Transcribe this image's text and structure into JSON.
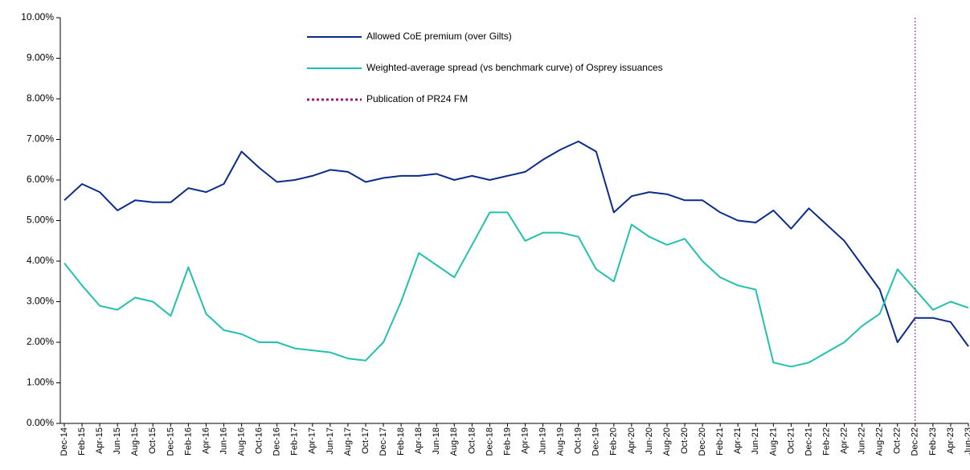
{
  "chart_data": {
    "type": "line",
    "categories": [
      "Dec-14",
      "Feb-15",
      "Apr-15",
      "Jun-15",
      "Aug-15",
      "Oct-15",
      "Dec-15",
      "Feb-16",
      "Apr-16",
      "Jun-16",
      "Aug-16",
      "Oct-16",
      "Dec-16",
      "Feb-17",
      "Apr-17",
      "Jun-17",
      "Aug-17",
      "Oct-17",
      "Dec-17",
      "Feb-18",
      "Apr-18",
      "Jun-18",
      "Aug-18",
      "Oct-18",
      "Dec-18",
      "Feb-19",
      "Apr-19",
      "Jun-19",
      "Aug-19",
      "Oct-19",
      "Dec-19",
      "Feb-20",
      "Apr-20",
      "Jun-20",
      "Aug-20",
      "Oct-20",
      "Dec-20",
      "Feb-21",
      "Apr-21",
      "Jun-21",
      "Aug-21",
      "Oct-21",
      "Dec-21",
      "Feb-22",
      "Apr-22",
      "Jun-22",
      "Aug-22",
      "Oct-22",
      "Dec-22",
      "Feb-23",
      "Apr-23",
      "Jun-23"
    ],
    "series": [
      {
        "name": "Allowed CoE premium (over Gilts)",
        "color": "#0b2c8c",
        "values": [
          5.5,
          5.9,
          5.7,
          5.25,
          5.5,
          5.45,
          5.45,
          5.8,
          5.7,
          5.9,
          6.7,
          6.3,
          5.95,
          6.0,
          6.1,
          6.25,
          6.2,
          5.95,
          6.05,
          6.1,
          6.1,
          6.15,
          6.0,
          6.1,
          6.0,
          6.1,
          6.2,
          6.5,
          6.75,
          6.95,
          6.7,
          5.2,
          5.6,
          5.7,
          5.65,
          5.5,
          5.5,
          5.2,
          5.0,
          4.95,
          5.25,
          4.8,
          5.3,
          4.9,
          4.5,
          3.9,
          3.3,
          2.0,
          2.6,
          2.6,
          2.5,
          1.9
        ]
      },
      {
        "name": "Weighted-average spread (vs benchmark curve) of Osprey issuances",
        "color": "#22c1ad",
        "values": [
          3.95,
          3.4,
          2.9,
          2.8,
          3.1,
          3.0,
          2.65,
          3.85,
          2.7,
          2.3,
          2.2,
          2.0,
          2.0,
          1.85,
          1.8,
          1.75,
          1.6,
          1.55,
          2.0,
          3.0,
          4.2,
          3.9,
          3.6,
          4.4,
          5.2,
          5.2,
          4.5,
          4.7,
          4.7,
          4.6,
          3.8,
          3.5,
          4.9,
          4.6,
          4.4,
          4.55,
          4.0,
          3.6,
          3.4,
          3.3,
          1.5,
          1.4,
          1.5,
          1.75,
          2.0,
          2.4,
          2.7,
          3.8,
          3.3,
          2.8,
          3.0,
          2.85
        ]
      }
    ],
    "markers": [
      {
        "name": "Publication of PR24 FM",
        "x": "Dec-22",
        "color": "#9b1a7e",
        "style": "dotted"
      }
    ],
    "ylim": [
      0,
      10
    ],
    "yticks": [
      {
        "value": 0,
        "label": "0.00%"
      },
      {
        "value": 1,
        "label": "1.00%"
      },
      {
        "value": 2,
        "label": "2.00%"
      },
      {
        "value": 3,
        "label": "3.00%"
      },
      {
        "value": 4,
        "label": "4.00%"
      },
      {
        "value": 5,
        "label": "5.00%"
      },
      {
        "value": 6,
        "label": "6.00%"
      },
      {
        "value": 7,
        "label": "7.00%"
      },
      {
        "value": 8,
        "label": "8.00%"
      },
      {
        "value": 9,
        "label": "9.00%"
      },
      {
        "value": 10,
        "label": "10.00%"
      }
    ],
    "grid": false,
    "legend": "top"
  }
}
